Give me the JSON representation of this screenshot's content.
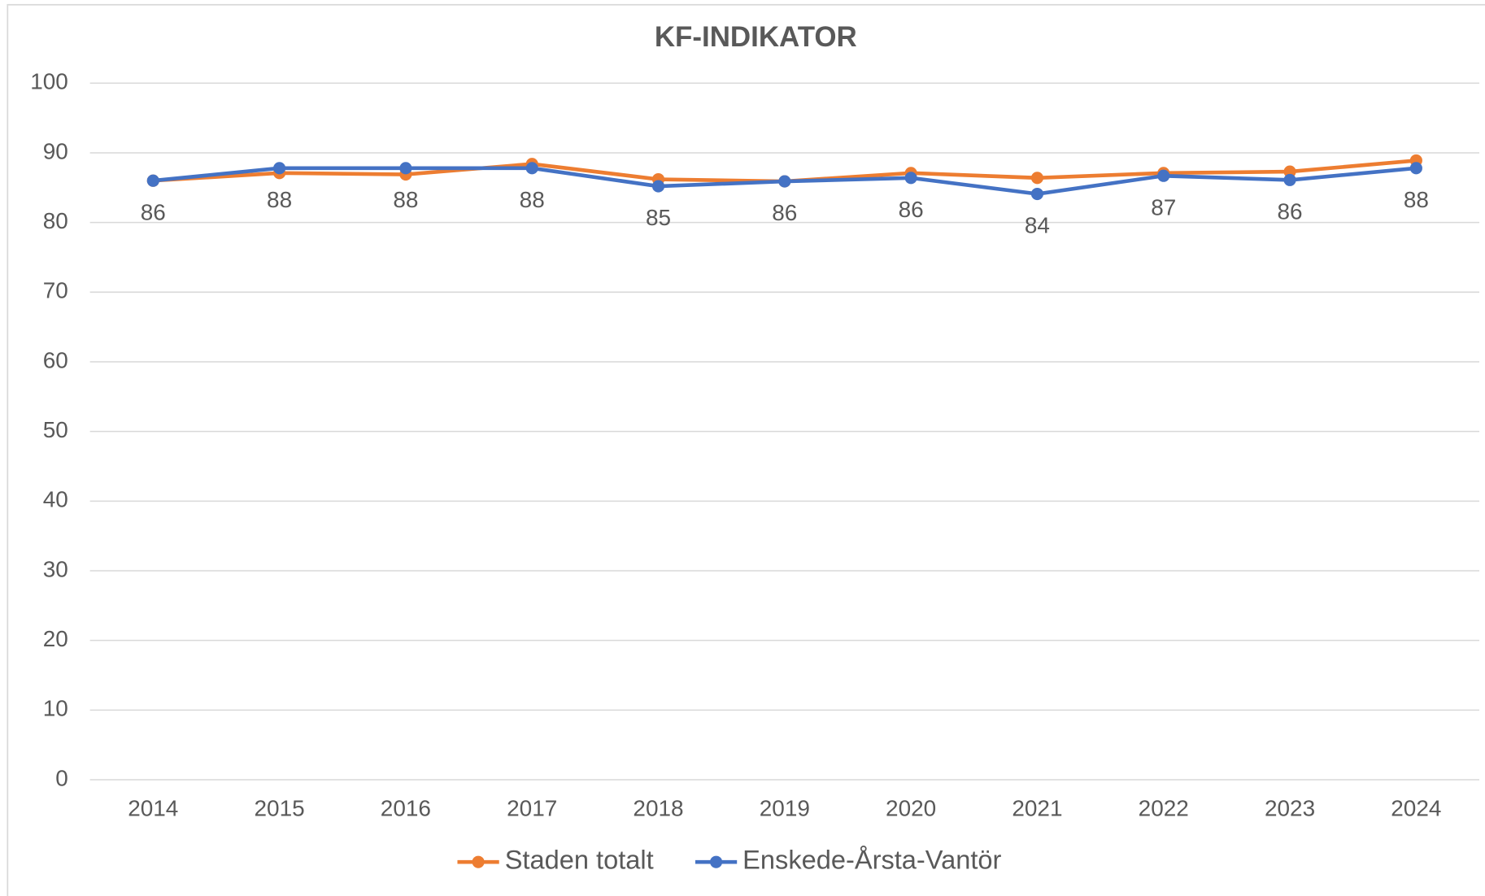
{
  "chart_data": {
    "type": "line",
    "title": "KF-INDIKATOR",
    "categories": [
      "2014",
      "2015",
      "2016",
      "2017",
      "2018",
      "2019",
      "2020",
      "2021",
      "2022",
      "2023",
      "2024"
    ],
    "series": [
      {
        "name": "Staden totalt",
        "color": "#ed7d31",
        "values": [
          86,
          87.1,
          86.9,
          88.4,
          86.2,
          85.9,
          87.1,
          86.4,
          87.1,
          87.3,
          88.9
        ]
      },
      {
        "name": "Enskede-Årsta-Vantör",
        "color": "#4472c4",
        "values": [
          86,
          87.8,
          87.8,
          87.8,
          85.2,
          85.9,
          86.4,
          84.1,
          86.7,
          86.1,
          87.8
        ],
        "value_labels": [
          "86",
          "88",
          "88",
          "88",
          "85",
          "86",
          "86",
          "84",
          "87",
          "86",
          "88"
        ]
      }
    ],
    "ylim": [
      0,
      100
    ],
    "yticks": [
      0,
      10,
      20,
      30,
      40,
      50,
      60,
      70,
      80,
      90,
      100
    ],
    "grid": true,
    "legend": "bottom"
  }
}
